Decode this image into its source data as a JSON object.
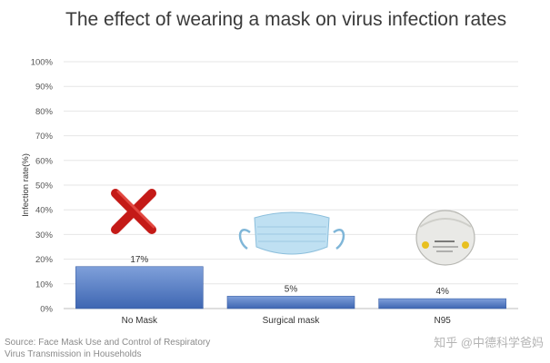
{
  "chart_data": {
    "type": "bar",
    "title": "The effect of wearing a mask on virus infection rates",
    "ylabel": "Infection rate(%)",
    "xlabel": "",
    "categories": [
      "No Mask",
      "Surgical mask",
      "N95"
    ],
    "values": [
      17,
      5,
      4
    ],
    "data_labels": [
      "17%",
      "5%",
      "4%"
    ],
    "ylim": [
      0,
      100
    ],
    "yticks": [
      0,
      10,
      20,
      30,
      40,
      50,
      60,
      70,
      80,
      90,
      100
    ],
    "ytick_labels": [
      "0%",
      "10%",
      "20%",
      "30%",
      "40%",
      "50%",
      "60%",
      "70%",
      "80%",
      "90%",
      "100%"
    ],
    "grid": true,
    "legend": "none",
    "bar_color": "#4f7bc6",
    "source_lines": [
      "Source: Face Mask Use and Control of Respiratory",
      "Virus Transmission in Households"
    ],
    "watermark": "知乎 @中德科学爸妈",
    "icons": [
      "red-x-icon",
      "surgical-mask-icon",
      "n95-mask-icon"
    ]
  }
}
